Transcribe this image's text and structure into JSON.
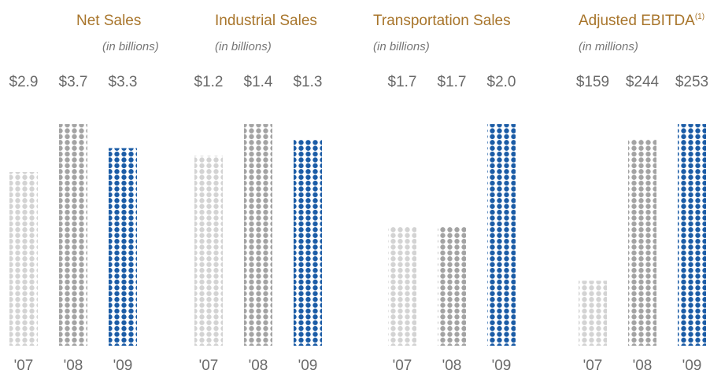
{
  "chart_data": [
    {
      "type": "bar",
      "title": "Net Sales",
      "subtitle": "(in billions)",
      "categories": [
        "'07",
        "'08",
        "'09"
      ],
      "values": [
        2.9,
        3.7,
        3.3
      ],
      "value_labels": [
        "$2.9",
        "$3.7",
        "$3.3"
      ],
      "colors": [
        "#d3d3d3",
        "#a3a3a3",
        "#1b5ca6"
      ],
      "ylim": [
        0,
        3.7
      ]
    },
    {
      "type": "bar",
      "title": "Industrial Sales",
      "subtitle": "(in billions)",
      "categories": [
        "'07",
        "'08",
        "'09"
      ],
      "values": [
        1.2,
        1.4,
        1.3
      ],
      "value_labels": [
        "$1.2",
        "$1.4",
        "$1.3"
      ],
      "colors": [
        "#d3d3d3",
        "#a3a3a3",
        "#1b5ca6"
      ],
      "ylim": [
        0,
        1.4
      ]
    },
    {
      "type": "bar",
      "title": "Transportation Sales",
      "subtitle": "(in billions)",
      "categories": [
        "'07",
        "'08",
        "'09"
      ],
      "values": [
        1.7,
        1.7,
        2.0
      ],
      "value_labels": [
        "$1.7",
        "$1.7",
        "$2.0"
      ],
      "colors": [
        "#d3d3d3",
        "#a3a3a3",
        "#1b5ca6"
      ],
      "ylim": [
        1.35,
        2.0
      ]
    },
    {
      "type": "bar",
      "title": "Adjusted EBITDA",
      "title_note": "(1)",
      "subtitle": "(in millions)",
      "categories": [
        "'07",
        "'08",
        "'09"
      ],
      "values": [
        159,
        244,
        253
      ],
      "value_labels": [
        "$159",
        "$244",
        "$253"
      ],
      "colors": [
        "#d3d3d3",
        "#a3a3a3",
        "#1b5ca6"
      ],
      "ylim": [
        120,
        253
      ]
    }
  ]
}
